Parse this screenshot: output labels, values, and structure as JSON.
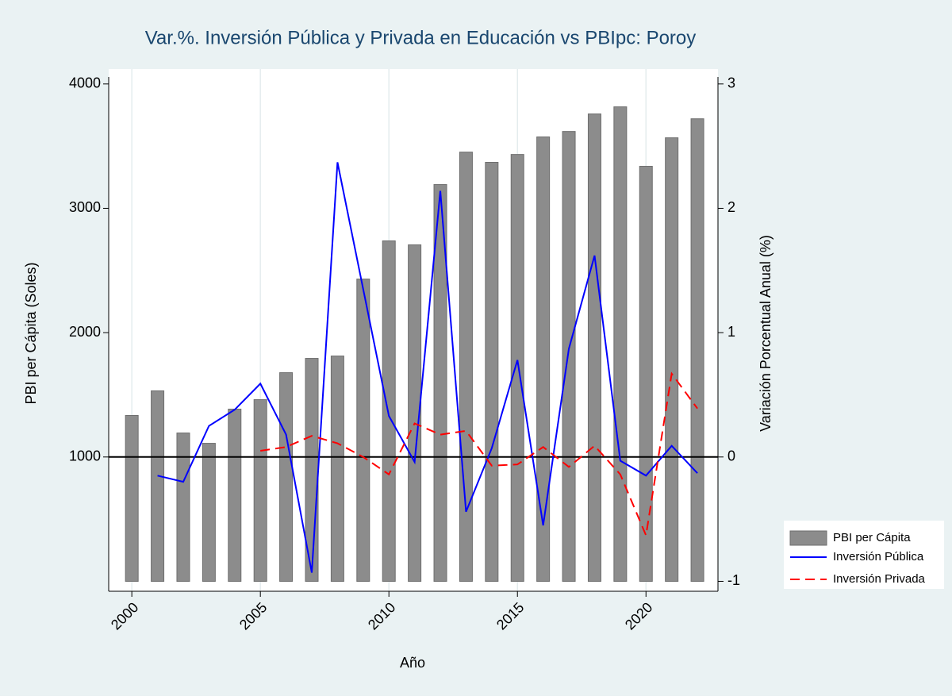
{
  "chart_data": {
    "type": "combo",
    "title": "Var.%. Inversión Pública y Privada en Educación vs PBIpc: Poroy",
    "xlabel": "Año",
    "ylabel": "PBI per Cápita (Soles)",
    "y2label": "Variación Porcentual Anual (%)",
    "x": [
      2000,
      2001,
      2002,
      2003,
      2004,
      2005,
      2006,
      2007,
      2008,
      2009,
      2010,
      2011,
      2012,
      2013,
      2014,
      2015,
      2016,
      2017,
      2018,
      2019,
      2020,
      2021,
      2022
    ],
    "xlim": [
      1999.1,
      2022.8
    ],
    "xticks": [
      2000,
      2005,
      2010,
      2015,
      2020
    ],
    "ylim": [
      -80,
      4120
    ],
    "yticks": [
      1000,
      2000,
      3000,
      4000
    ],
    "y2lim": [
      -1.08,
      3.12
    ],
    "y2ticks": [
      -1,
      0,
      1,
      2,
      3
    ],
    "yline": 1000,
    "grid": true,
    "legend": "right",
    "series": [
      {
        "name": "PBI per Cápita",
        "kind": "bar",
        "color": "#8c8c8c",
        "values": [
          1334,
          1532,
          1193,
          1110,
          1385,
          1461,
          1678,
          1793,
          1812,
          2431,
          2738,
          2706,
          3191,
          3452,
          3370,
          3433,
          3574,
          3618,
          3759,
          3816,
          3338,
          3567,
          3720
        ]
      },
      {
        "name": "Inversión Pública",
        "kind": "line",
        "axis": "y2",
        "color": "#0000ff",
        "values": [
          null,
          -0.15,
          -0.2,
          0.25,
          0.38,
          0.59,
          0.18,
          -0.93,
          2.37,
          1.35,
          0.33,
          -0.04,
          2.14,
          -0.44,
          0.07,
          0.78,
          -0.55,
          0.87,
          1.62,
          -0.03,
          -0.15,
          0.09,
          -0.13
        ]
      },
      {
        "name": "Inversión Privada",
        "kind": "dash",
        "axis": "y2",
        "color": "#ff0000",
        "values": [
          null,
          null,
          null,
          null,
          null,
          0.05,
          0.08,
          0.17,
          0.11,
          0.0,
          -0.14,
          0.27,
          0.18,
          0.21,
          -0.07,
          -0.06,
          0.08,
          -0.08,
          0.09,
          -0.14,
          -0.63,
          0.67,
          0.39
        ]
      }
    ]
  }
}
